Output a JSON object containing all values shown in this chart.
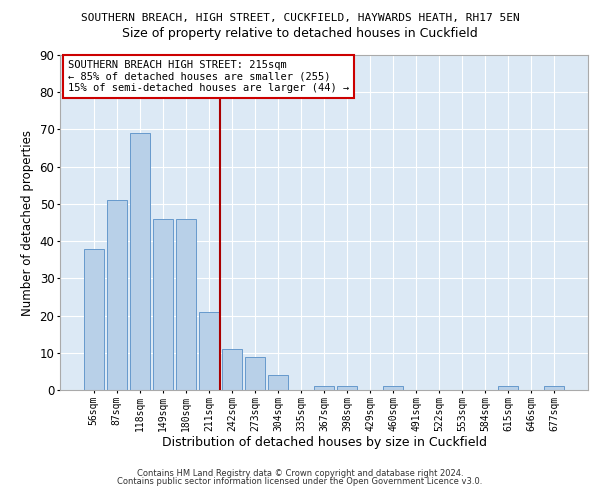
{
  "title1": "SOUTHERN BREACH, HIGH STREET, CUCKFIELD, HAYWARDS HEATH, RH17 5EN",
  "title2": "Size of property relative to detached houses in Cuckfield",
  "xlabel": "Distribution of detached houses by size in Cuckfield",
  "ylabel": "Number of detached properties",
  "bar_labels": [
    "56sqm",
    "87sqm",
    "118sqm",
    "149sqm",
    "180sqm",
    "211sqm",
    "242sqm",
    "273sqm",
    "304sqm",
    "335sqm",
    "367sqm",
    "398sqm",
    "429sqm",
    "460sqm",
    "491sqm",
    "522sqm",
    "553sqm",
    "584sqm",
    "615sqm",
    "646sqm",
    "677sqm"
  ],
  "bar_values": [
    38,
    51,
    69,
    46,
    46,
    21,
    11,
    9,
    4,
    0,
    1,
    1,
    0,
    1,
    0,
    0,
    0,
    0,
    1,
    0,
    1
  ],
  "bar_color": "#b8d0e8",
  "bar_edge_color": "#6699cc",
  "vline_x": 5.5,
  "vline_color": "#aa0000",
  "annotation_title": "SOUTHERN BREACH HIGH STREET: 215sqm",
  "annotation_line1": "← 85% of detached houses are smaller (255)",
  "annotation_line2": "15% of semi-detached houses are larger (44) →",
  "ylim": [
    0,
    90
  ],
  "yticks": [
    0,
    10,
    20,
    30,
    40,
    50,
    60,
    70,
    80,
    90
  ],
  "footnote1": "Contains HM Land Registry data © Crown copyright and database right 2024.",
  "footnote2": "Contains public sector information licensed under the Open Government Licence v3.0.",
  "plot_bg_color": "#dce9f5",
  "grid_color": "#ffffff",
  "title1_fontsize": 8,
  "title2_fontsize": 9,
  "ylabel_fontsize": 8.5,
  "xlabel_fontsize": 9,
  "ytick_fontsize": 8.5,
  "xtick_fontsize": 7,
  "footnote_fontsize": 6,
  "annot_fontsize": 7.5
}
